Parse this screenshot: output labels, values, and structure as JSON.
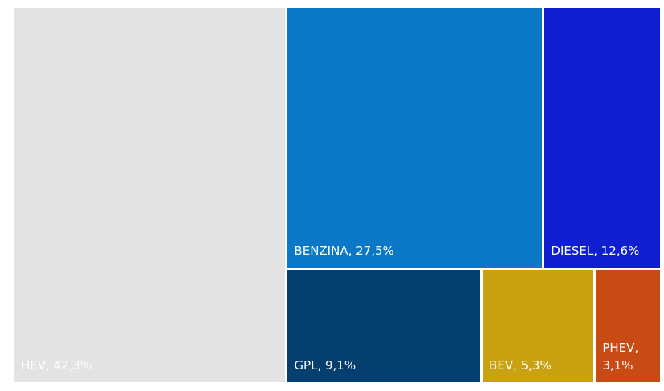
{
  "chart_data": {
    "type": "treemap",
    "values": [
      42.3,
      27.5,
      12.6,
      9.1,
      5.3,
      3.1
    ],
    "value_labels": [
      "HEV, 42,3%",
      "BENZINA, 27,5%",
      "DIESEL, 12,6%",
      "GPL, 9,1%",
      "BEV, 5,3%",
      "PHEV, 3,1%"
    ],
    "colors": [
      "#e3e3e3",
      "#0a78c6",
      "#0f1fd0",
      "#053f6f",
      "#c9a212",
      "#c84b16"
    ]
  }
}
